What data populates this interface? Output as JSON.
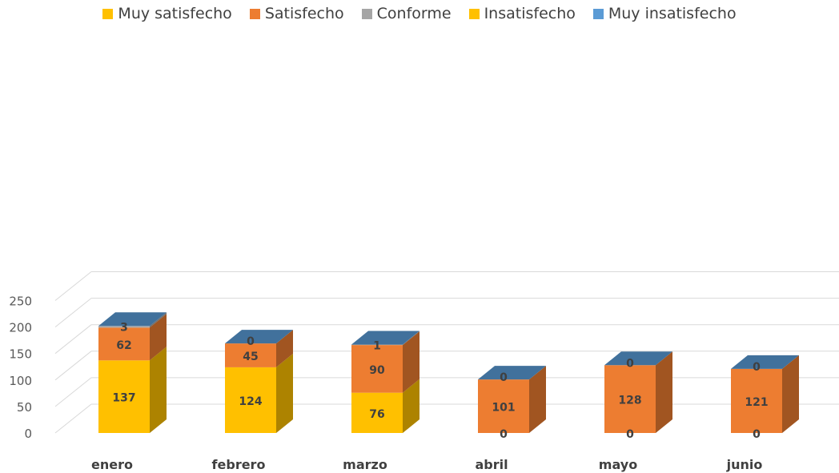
{
  "chart_data": {
    "type": "bar",
    "stacked": true,
    "three_d": true,
    "categories": [
      "enero",
      "febrero",
      "marzo",
      "abril",
      "mayo",
      "junio"
    ],
    "series": [
      {
        "name": "Muy satisfecho",
        "color": "#FFC000",
        "values": [
          137,
          124,
          76,
          0,
          0,
          0
        ]
      },
      {
        "name": "Satisfecho",
        "color": "#ED7D31",
        "values": [
          62,
          45,
          90,
          101,
          128,
          121
        ]
      },
      {
        "name": "Conforme",
        "color": "#A5A5A5",
        "values": [
          3,
          0,
          1,
          0,
          0,
          0
        ]
      },
      {
        "name": "Insatisfecho",
        "color": "#FFC000",
        "values": [
          0,
          0,
          0,
          0,
          0,
          0
        ]
      },
      {
        "name": "Muy insatisfecho",
        "color": "#5B9BD5",
        "values": [
          0,
          0,
          0,
          0,
          0,
          0
        ]
      }
    ],
    "ylim": [
      0,
      250
    ],
    "yticks": [
      0,
      50,
      100,
      150,
      200,
      250
    ],
    "grid": true,
    "legend_position": "top",
    "data_labels": [
      {
        "category": "enero",
        "labels": [
          {
            "series": "Muy satisfecho",
            "text": "137"
          },
          {
            "series": "Satisfecho",
            "text": "62"
          },
          {
            "series": "Conforme",
            "text": "3"
          }
        ]
      },
      {
        "category": "febrero",
        "labels": [
          {
            "series": "Muy satisfecho",
            "text": "124"
          },
          {
            "series": "Satisfecho",
            "text": "45"
          },
          {
            "series": "Conforme",
            "text": "0"
          }
        ]
      },
      {
        "category": "marzo",
        "labels": [
          {
            "series": "Muy satisfecho",
            "text": "76"
          },
          {
            "series": "Satisfecho",
            "text": "90"
          },
          {
            "series": "Conforme",
            "text": "1"
          }
        ]
      },
      {
        "category": "abril",
        "labels": [
          {
            "series": "Muy satisfecho",
            "text": "0"
          },
          {
            "series": "Satisfecho",
            "text": "101"
          },
          {
            "series": "Conforme",
            "text": "0"
          }
        ]
      },
      {
        "category": "mayo",
        "labels": [
          {
            "series": "Muy satisfecho",
            "text": "0"
          },
          {
            "series": "Satisfecho",
            "text": "128"
          },
          {
            "series": "Conforme",
            "text": "0"
          }
        ]
      },
      {
        "category": "junio",
        "labels": [
          {
            "series": "Muy satisfecho",
            "text": "0"
          },
          {
            "series": "Satisfecho",
            "text": "121"
          },
          {
            "series": "Conforme",
            "text": "0"
          }
        ]
      }
    ]
  }
}
